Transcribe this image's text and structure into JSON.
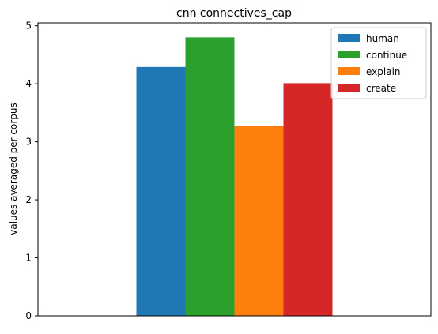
{
  "chart_data": {
    "type": "bar",
    "title": "cnn connectives_cap",
    "xlabel": "",
    "ylabel": "values averaged per corpus",
    "ylim": [
      0,
      5.05
    ],
    "yticks": [
      0,
      1,
      2,
      3,
      4,
      5
    ],
    "grid": false,
    "legend_position": "top-right",
    "categories": [
      ""
    ],
    "series": [
      {
        "name": "human",
        "values": [
          4.29
        ],
        "color": "#1f77b4"
      },
      {
        "name": "continue",
        "values": [
          4.8
        ],
        "color": "#2ca02c"
      },
      {
        "name": "explain",
        "values": [
          3.27
        ],
        "color": "#ff7f0e"
      },
      {
        "name": "create",
        "values": [
          4.01
        ],
        "color": "#d62728"
      }
    ]
  }
}
